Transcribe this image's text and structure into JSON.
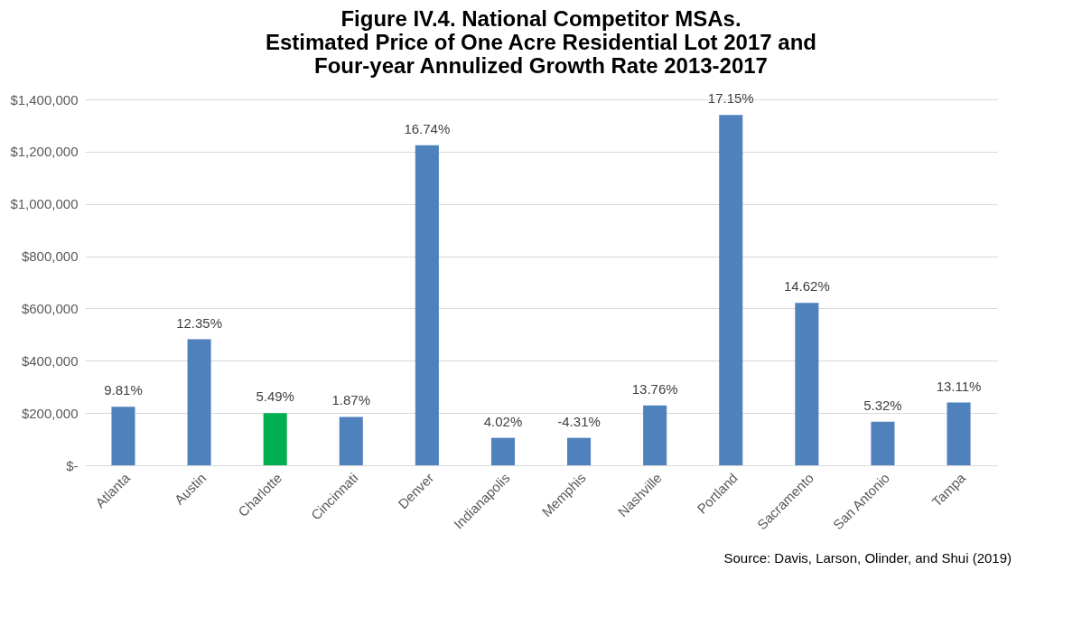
{
  "chart_data": {
    "type": "bar",
    "title": "Figure IV.4. National Competitor MSAs.\nEstimated Price of One Acre Residential Lot 2017 and\nFour-year Annulized Growth Rate 2013-2017",
    "categories": [
      "Atlanta",
      "Austin",
      "Charlotte",
      "Cincinnati",
      "Denver",
      "Indianapolis",
      "Memphis",
      "Nashville",
      "Portland",
      "Sacramento",
      "San Antonio",
      "Tampa"
    ],
    "values": [
      224000,
      482000,
      200000,
      185000,
      1225000,
      105000,
      105000,
      229000,
      1340000,
      621000,
      167000,
      240000
    ],
    "colors": [
      "#4f81bd",
      "#4f81bd",
      "#00b050",
      "#4f81bd",
      "#4f81bd",
      "#4f81bd",
      "#4f81bd",
      "#4f81bd",
      "#4f81bd",
      "#4f81bd",
      "#4f81bd",
      "#4f81bd"
    ],
    "ylim": [
      0,
      1400000
    ],
    "yticks": [
      {
        "value": 0,
        "label": "$-"
      },
      {
        "value": 200000,
        "label": "$200,000"
      },
      {
        "value": 400000,
        "label": "$400,000"
      },
      {
        "value": 600000,
        "label": "$600,000"
      },
      {
        "value": 800000,
        "label": "$800,000"
      },
      {
        "value": 1000000,
        "label": "$1,000,000"
      },
      {
        "value": 1200000,
        "label": "$1,200,000"
      },
      {
        "value": 1400000,
        "label": "$1,400,000"
      }
    ],
    "grid": "y",
    "annotations": [
      {
        "text": "9.81%",
        "x": "Atlanta",
        "y": 224000
      },
      {
        "text": "12.35%",
        "x": "Austin",
        "y": 482000
      },
      {
        "text": "5.49%",
        "x": "Charlotte",
        "y": 200000
      },
      {
        "text": "1.87%",
        "x": "Cincinnati",
        "y": 185000
      },
      {
        "text": "16.74%",
        "x": "Denver",
        "y": 1225000
      },
      {
        "text": "4.02%",
        "x": "Indianapolis",
        "y": 105000
      },
      {
        "text": "-4.31%",
        "x": "Memphis",
        "y": 105000
      },
      {
        "text": "13.76%",
        "x": "Nashville",
        "y": 229000
      },
      {
        "text": "17.15%",
        "x": "Portland",
        "y": 1340000
      },
      {
        "text": "14.62%",
        "x": "Sacramento",
        "y": 621000
      },
      {
        "text": "5.32%",
        "x": "San Antonio",
        "y": 167000
      },
      {
        "text": "13.11%",
        "x": "Tampa",
        "y": 240000
      },
      "Source: Davis, Larson, Olinder, and Shui (2019)"
    ]
  }
}
